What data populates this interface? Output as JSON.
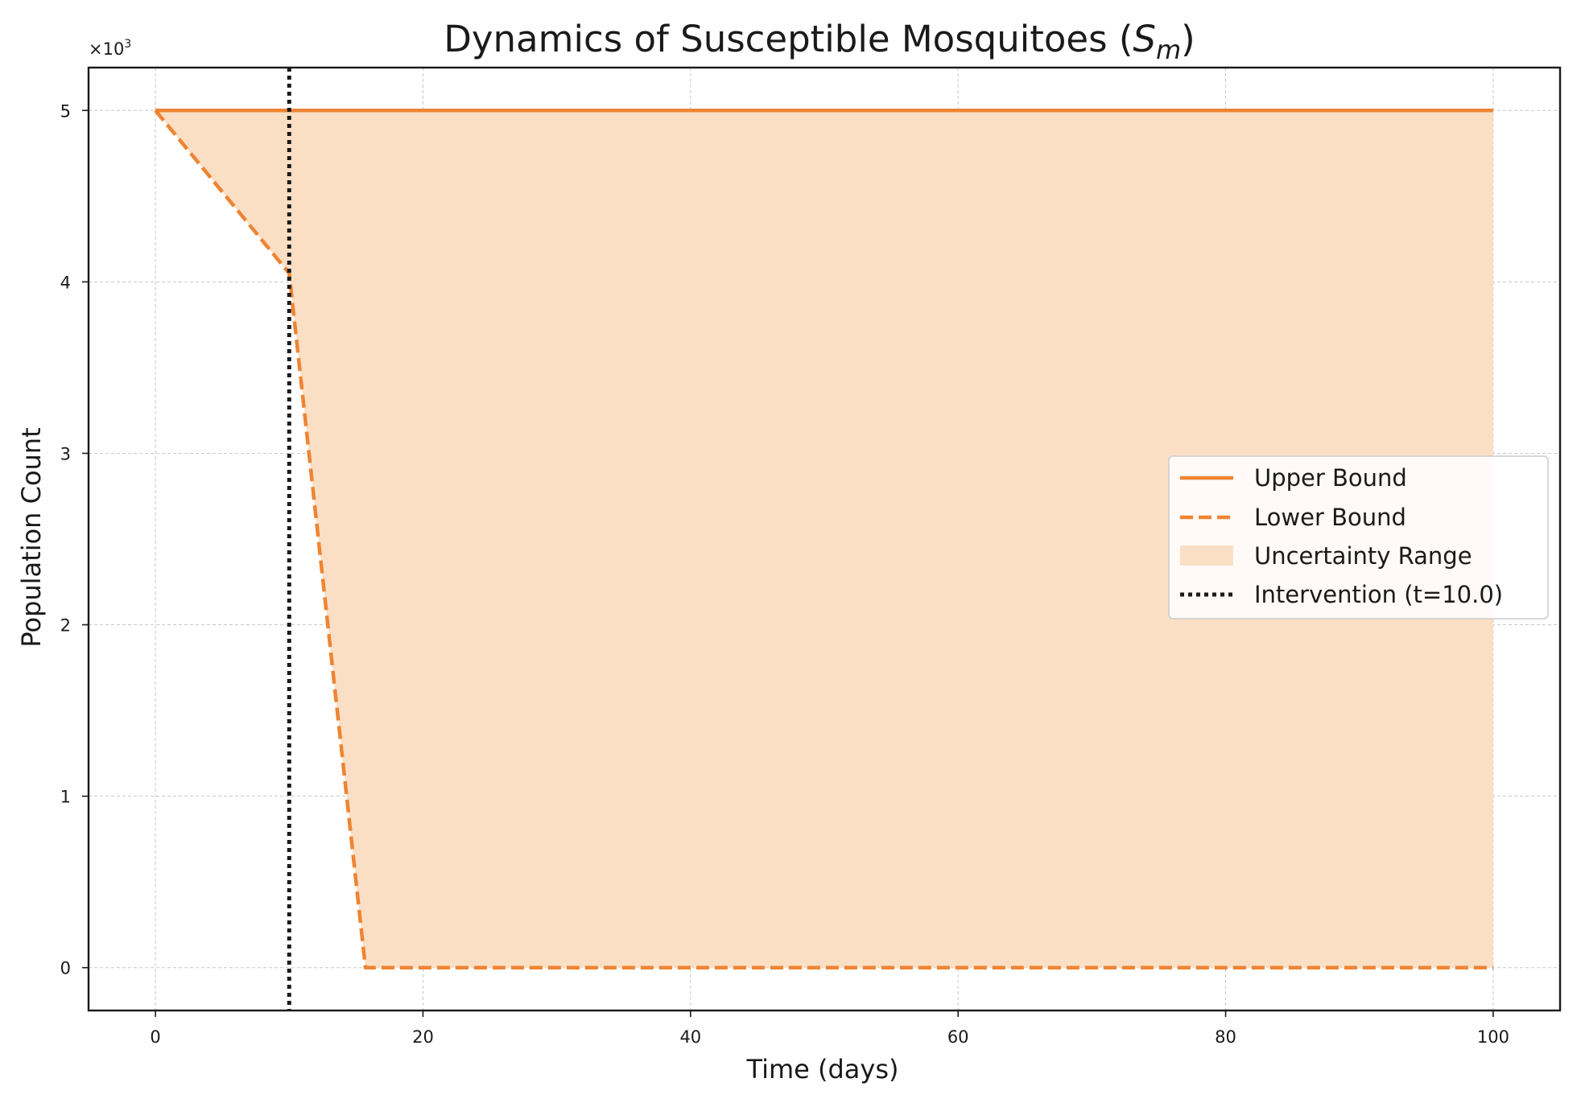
{
  "chart_data": {
    "type": "line",
    "title": "Dynamics of Susceptible Mosquitoes (",
    "title_symbol": "S",
    "title_subscript": "m",
    "title_close": ")",
    "xlabel": "Time (days)",
    "ylabel": "Population Count",
    "y_multiplier": {
      "base": "×10",
      "exponent": "3"
    },
    "xlim": [
      -5,
      105
    ],
    "ylim": [
      -250,
      5250
    ],
    "x_ticks": [
      0,
      20,
      40,
      60,
      80,
      100
    ],
    "x_tick_labels": [
      "0",
      "20",
      "40",
      "60",
      "80",
      "100"
    ],
    "y_ticks": [
      0,
      1000,
      2000,
      3000,
      4000,
      5000
    ],
    "y_tick_labels": [
      "0",
      "1",
      "2",
      "3",
      "4",
      "5"
    ],
    "grid": true,
    "legend_position": "center-right",
    "series": [
      {
        "name": "Upper Bound",
        "style": "solid",
        "color": "#ee8433",
        "x": [
          0,
          100
        ],
        "y": [
          5000,
          5000
        ]
      },
      {
        "name": "Lower Bound",
        "style": "dashed",
        "color": "#ee8433",
        "x": [
          0,
          10,
          15.7,
          100
        ],
        "y": [
          5000,
          4050,
          0,
          0
        ]
      }
    ],
    "fill": {
      "name": "Uncertainty Range",
      "color": "#fbdfc5",
      "between": [
        "Upper Bound",
        "Lower Bound"
      ]
    },
    "vline": {
      "name": "Intervention (t=10.0)",
      "x": 10,
      "style": "dotted",
      "color": "#1a1a1a"
    }
  }
}
